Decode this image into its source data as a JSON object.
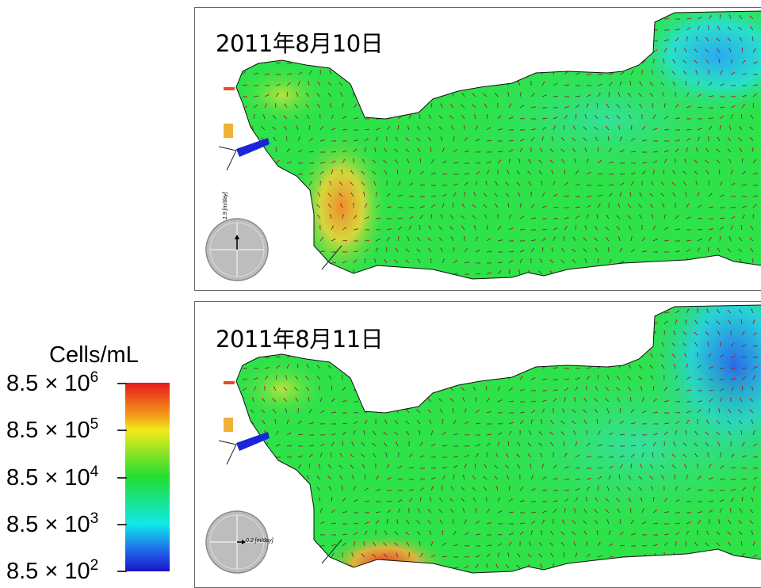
{
  "panels": [
    {
      "date_label": "2011年8月10日",
      "compass_label": "1.9 [m/day]"
    },
    {
      "date_label": "2011年8月11日",
      "compass_label": "0.2 [m/day]"
    }
  ],
  "legend": {
    "title": "Cells/mL",
    "ticks": [
      {
        "base": "8.5 × 10",
        "exp": "6"
      },
      {
        "base": "8.5 × 10",
        "exp": "5"
      },
      {
        "base": "8.5 × 10",
        "exp": "4"
      },
      {
        "base": "8.5 × 10",
        "exp": "3"
      },
      {
        "base": "8.5 × 10",
        "exp": "2"
      }
    ]
  },
  "colors": {
    "high": "#e8181a",
    "mid": "#22dd30",
    "low": "#1a14c8",
    "arrow": "#e02020",
    "arrow_alt": "#2040e0",
    "frame": "#666666"
  }
}
